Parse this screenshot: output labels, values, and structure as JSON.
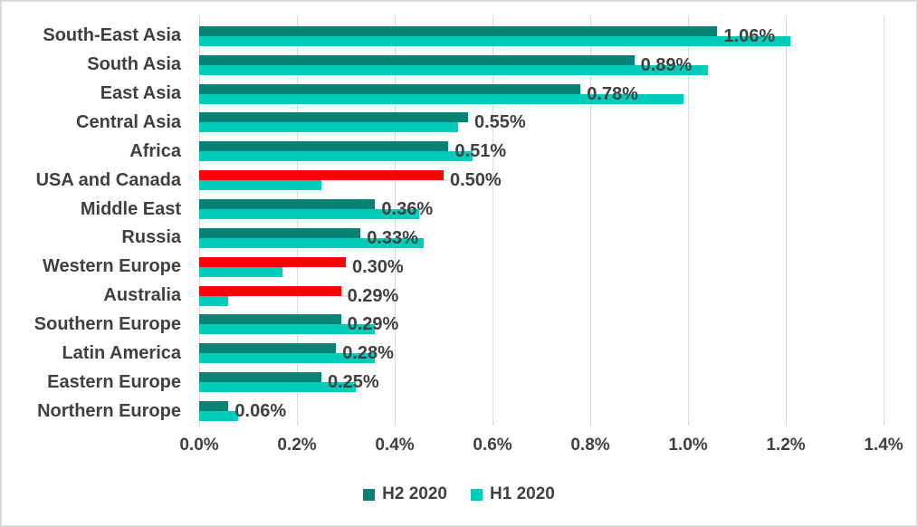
{
  "chart_data": {
    "type": "bar",
    "orientation": "horizontal",
    "title": "",
    "xlabel": "",
    "ylabel": "",
    "xlim": [
      0,
      1.4
    ],
    "x_tick_step": 0.2,
    "x_unit": "%",
    "grid": true,
    "legend_position": "bottom",
    "categories": [
      "South-East Asia",
      "South Asia",
      "East Asia",
      "Central Asia",
      "Africa",
      "USA and Canada",
      "Middle East",
      "Russia",
      "Western Europe",
      "Australia",
      "Southern Europe",
      "Latin America",
      "Eastern Europe",
      "Northern Europe"
    ],
    "series": [
      {
        "name": "H2 2020",
        "values": [
          1.06,
          0.89,
          0.78,
          0.55,
          0.51,
          0.5,
          0.36,
          0.33,
          0.3,
          0.29,
          0.29,
          0.28,
          0.25,
          0.06
        ],
        "default_color": "#068374",
        "bar_colors": [
          "#068374",
          "#068374",
          "#068374",
          "#068374",
          "#068374",
          "#FF0000",
          "#068374",
          "#068374",
          "#FF0000",
          "#FF0000",
          "#068374",
          "#068374",
          "#068374",
          "#068374"
        ],
        "highlighted_categories": [
          "USA and Canada",
          "Western Europe",
          "Australia"
        ],
        "data_labels": [
          "1.06%",
          "0.89%",
          "0.78%",
          "0.55%",
          "0.51%",
          "0.50%",
          "0.36%",
          "0.33%",
          "0.30%",
          "0.29%",
          "0.29%",
          "0.28%",
          "0.25%",
          "0.06%"
        ]
      },
      {
        "name": "H1 2020",
        "values": [
          1.21,
          1.04,
          0.99,
          0.53,
          0.56,
          0.25,
          0.45,
          0.46,
          0.17,
          0.06,
          0.36,
          0.36,
          0.32,
          0.08
        ],
        "default_color": "#00CCBA",
        "data_labels": []
      }
    ],
    "x_ticks": [
      "0.0%",
      "0.2%",
      "0.4%",
      "0.6%",
      "0.8%",
      "1.0%",
      "1.2%",
      "1.4%"
    ]
  },
  "legend": {
    "items": [
      {
        "label": "H2 2020",
        "color": "#068374"
      },
      {
        "label": "H1 2020",
        "color": "#00CCBA"
      }
    ]
  },
  "colors": {
    "h2_series": "#068374",
    "h1_series": "#00CCBA",
    "highlight_red": "#FF0000",
    "text": "#404040",
    "gridline": "#D9D9D9",
    "background": "#FFFFFF",
    "border": "#D9D9D9"
  }
}
